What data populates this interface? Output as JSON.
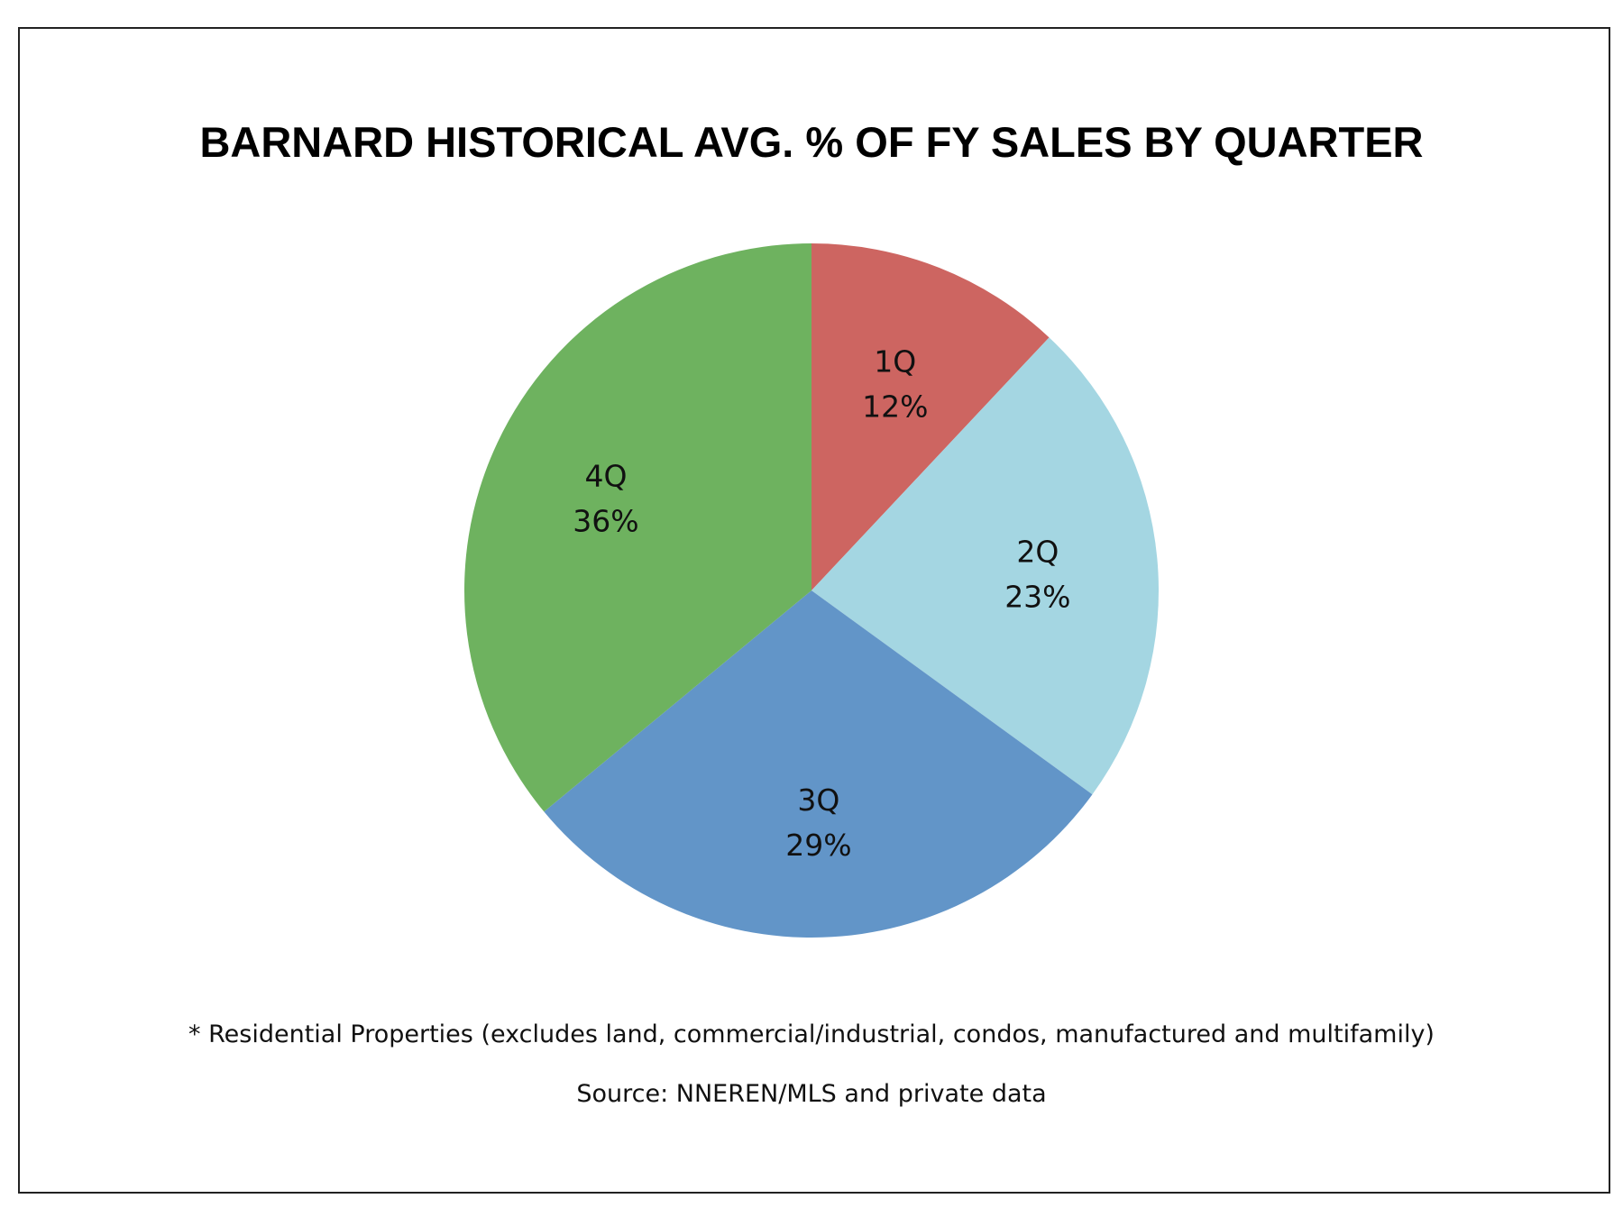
{
  "chart_data": {
    "type": "pie",
    "title": "BARNARD HISTORICAL AVG. % OF FY SALES BY QUARTER",
    "categories": [
      "1Q",
      "2Q",
      "3Q",
      "4Q"
    ],
    "values": [
      12,
      23,
      29,
      36
    ],
    "value_labels": [
      "12%",
      "23%",
      "29%",
      "36%"
    ],
    "colors": [
      "#cd6561",
      "#a4d6e2",
      "#6295c8",
      "#6eb25f"
    ],
    "start_angle": "12 o'clock",
    "direction": "clockwise",
    "legend": "none"
  },
  "footnotes": {
    "residential": "* Residential Properties (excludes land, commercial/industrial, condos, manufactured and multifamily)",
    "source": "Source: NNEREN/MLS and private data"
  }
}
